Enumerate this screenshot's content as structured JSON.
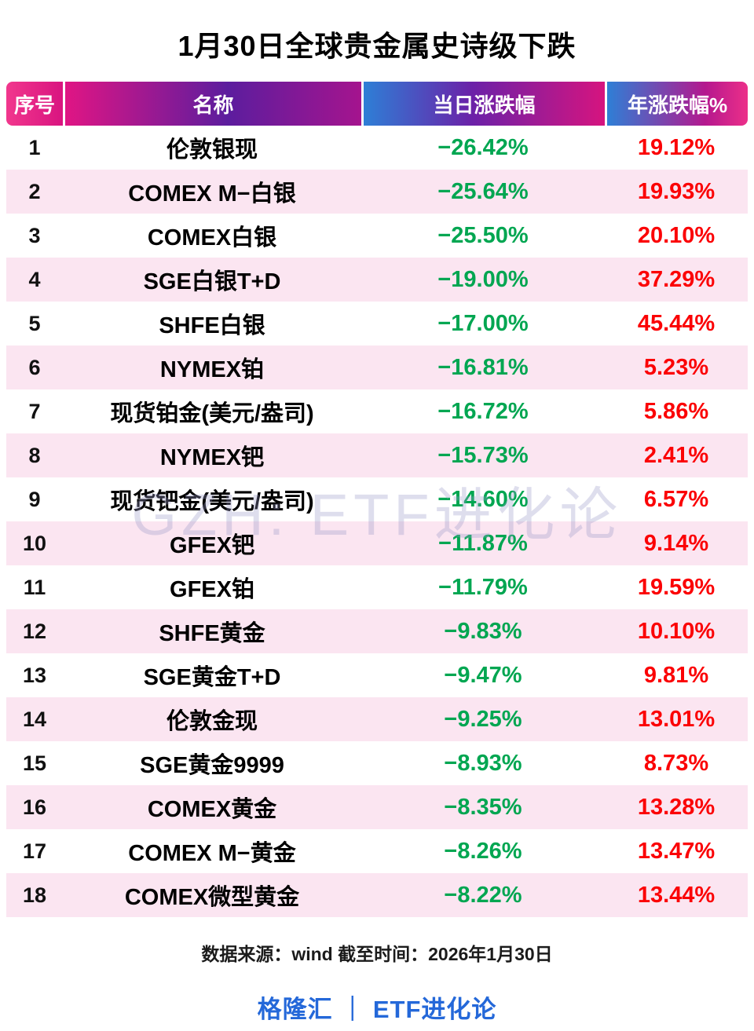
{
  "title": "1月30日全球贵金属史诗级下跌",
  "watermark": "GZH: ETF进化论",
  "table": {
    "headers": [
      "序号",
      "名称",
      "当日涨跌幅",
      "年涨跌幅%"
    ],
    "rows": [
      {
        "no": "1",
        "name": "伦敦银现",
        "daily": "−26.42%",
        "yearly": "19.12%"
      },
      {
        "no": "2",
        "name": "COMEX M−白银",
        "daily": "−25.64%",
        "yearly": "19.93%"
      },
      {
        "no": "3",
        "name": "COMEX白银",
        "daily": "−25.50%",
        "yearly": "20.10%"
      },
      {
        "no": "4",
        "name": "SGE白银T+D",
        "daily": "−19.00%",
        "yearly": "37.29%"
      },
      {
        "no": "5",
        "name": "SHFE白银",
        "daily": "−17.00%",
        "yearly": "45.44%"
      },
      {
        "no": "6",
        "name": "NYMEX铂",
        "daily": "−16.81%",
        "yearly": "5.23%"
      },
      {
        "no": "7",
        "name": "现货铂金(美元/盎司)",
        "daily": "−16.72%",
        "yearly": "5.86%"
      },
      {
        "no": "8",
        "name": "NYMEX钯",
        "daily": "−15.73%",
        "yearly": "2.41%"
      },
      {
        "no": "9",
        "name": "现货钯金(美元/盎司)",
        "daily": "−14.60%",
        "yearly": "6.57%"
      },
      {
        "no": "10",
        "name": "GFEX钯",
        "daily": "−11.87%",
        "yearly": "9.14%"
      },
      {
        "no": "11",
        "name": "GFEX铂",
        "daily": "−11.79%",
        "yearly": "19.59%"
      },
      {
        "no": "12",
        "name": "SHFE黄金",
        "daily": "−9.83%",
        "yearly": "10.10%"
      },
      {
        "no": "13",
        "name": "SGE黄金T+D",
        "daily": "−9.47%",
        "yearly": "9.81%"
      },
      {
        "no": "14",
        "name": "伦敦金现",
        "daily": "−9.25%",
        "yearly": "13.01%"
      },
      {
        "no": "15",
        "name": "SGE黄金9999",
        "daily": "−8.93%",
        "yearly": "8.73%"
      },
      {
        "no": "16",
        "name": "COMEX黄金",
        "daily": "−8.35%",
        "yearly": "13.28%"
      },
      {
        "no": "17",
        "name": "COMEX M−黄金",
        "daily": "−8.26%",
        "yearly": "13.47%"
      },
      {
        "no": "18",
        "name": "COMEX微型黄金",
        "daily": "−8.22%",
        "yearly": "13.44%"
      }
    ]
  },
  "footer": {
    "source": "数据来源：wind 截至时间：2026年1月30日",
    "brand": "格隆汇 ｜ ETF进化论"
  },
  "colors": {
    "down_green": "#00a651",
    "up_red": "#fb0205",
    "brand_blue": "#2468d9",
    "row_alt_pink": "#fbe5f1",
    "header_magenta": "#d91480",
    "header_purple": "#5c1d9e",
    "header_blue": "#2e7fd6"
  },
  "chart_data": {
    "type": "table",
    "title": "1月30日全球贵金属史诗级下跌",
    "columns": [
      "序号",
      "名称",
      "当日涨跌幅",
      "年涨跌幅%"
    ],
    "units": "%",
    "rows": [
      [
        1,
        "伦敦银现",
        -26.42,
        19.12
      ],
      [
        2,
        "COMEX M−白银",
        -25.64,
        19.93
      ],
      [
        3,
        "COMEX白银",
        -25.5,
        20.1
      ],
      [
        4,
        "SGE白银T+D",
        -19.0,
        37.29
      ],
      [
        5,
        "SHFE白银",
        -17.0,
        45.44
      ],
      [
        6,
        "NYMEX铂",
        -16.81,
        5.23
      ],
      [
        7,
        "现货铂金(美元/盎司)",
        -16.72,
        5.86
      ],
      [
        8,
        "NYMEX钯",
        -15.73,
        2.41
      ],
      [
        9,
        "现货钯金(美元/盎司)",
        -14.6,
        6.57
      ],
      [
        10,
        "GFEX钯",
        -11.87,
        9.14
      ],
      [
        11,
        "GFEX铂",
        -11.79,
        19.59
      ],
      [
        12,
        "SHFE黄金",
        -9.83,
        10.1
      ],
      [
        13,
        "SGE黄金T+D",
        -9.47,
        9.81
      ],
      [
        14,
        "伦敦金现",
        -9.25,
        13.01
      ],
      [
        15,
        "SGE黄金9999",
        -8.93,
        8.73
      ],
      [
        16,
        "COMEX黄金",
        -8.35,
        13.28
      ],
      [
        17,
        "COMEX M−黄金",
        -8.26,
        13.47
      ],
      [
        18,
        "COMEX微型黄金",
        -8.22,
        13.44
      ]
    ]
  }
}
